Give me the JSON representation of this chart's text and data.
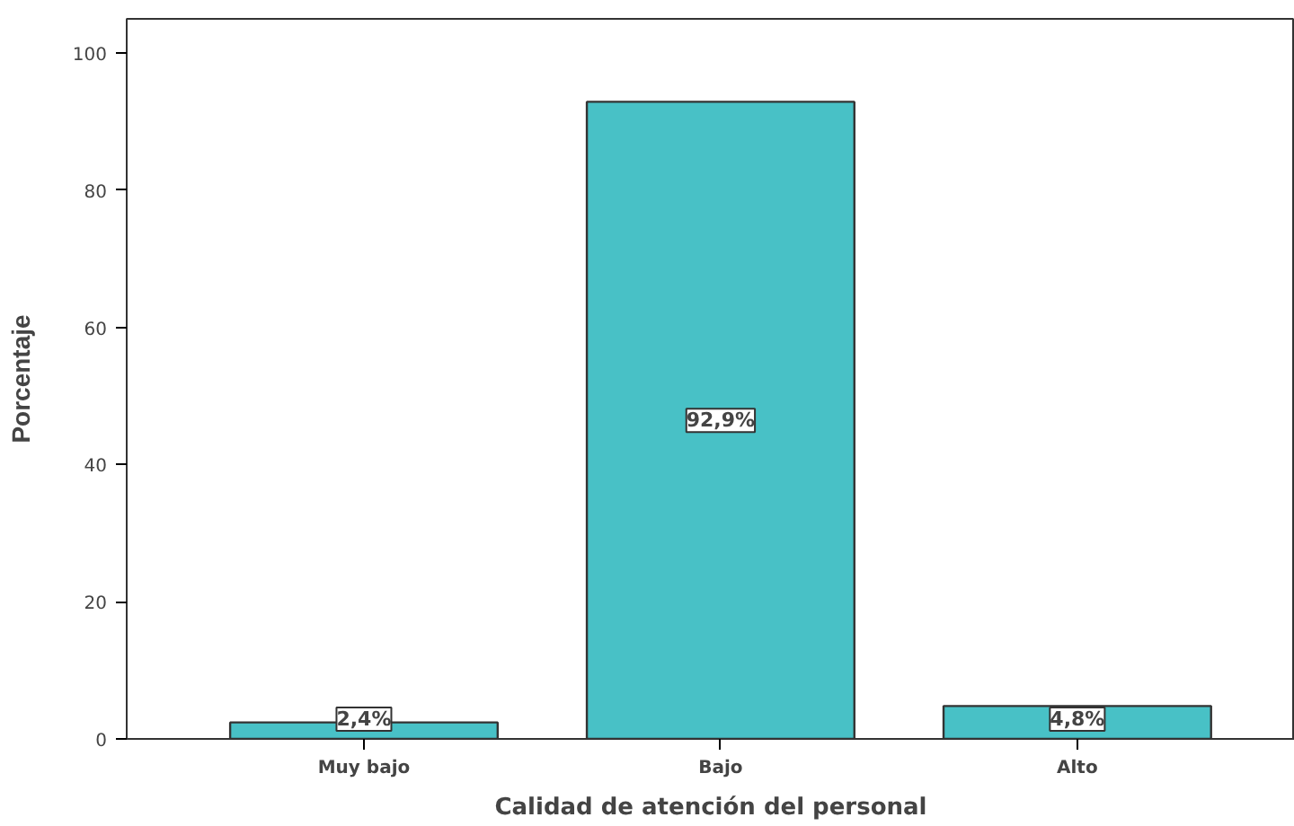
{
  "chart_data": {
    "type": "bar",
    "xlabel": "Calidad de atención del personal",
    "ylabel": "Porcentaje",
    "categories": [
      "Muy bajo",
      "Bajo",
      "Alto"
    ],
    "values": [
      2.4,
      92.9,
      4.8
    ],
    "value_labels": [
      "2,4%",
      "92,9%",
      "4,8%"
    ],
    "color": "#48c1c6",
    "ylim": [
      0,
      105
    ],
    "yticks": [
      0,
      20,
      40,
      60,
      80,
      100
    ],
    "grid": false
  }
}
